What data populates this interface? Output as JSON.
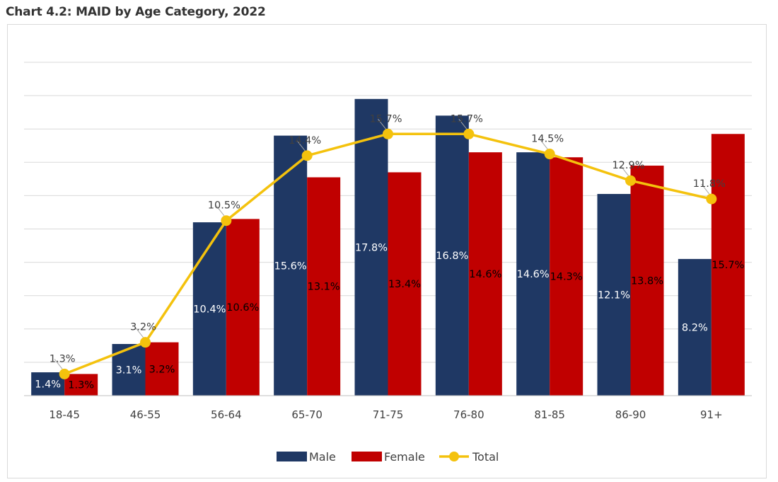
{
  "title": "Chart 4.2: MAID by Age Category, 2022",
  "chart_data": {
    "type": "bar",
    "categories": [
      "18-45",
      "46-55",
      "56-64",
      "65-70",
      "71-75",
      "76-80",
      "81-85",
      "86-90",
      "91+"
    ],
    "series": [
      {
        "name": "Male",
        "kind": "bar",
        "color": "#1f3864",
        "values": [
          1.4,
          3.1,
          10.4,
          15.6,
          17.8,
          16.8,
          14.6,
          12.1,
          8.2
        ],
        "labels": [
          "1.4%",
          "3.1%",
          "10.4%",
          "15.6%",
          "17.8%",
          "16.8%",
          "14.6%",
          "12.1%",
          "8.2%"
        ]
      },
      {
        "name": "Female",
        "kind": "bar",
        "color": "#c00000",
        "values": [
          1.3,
          3.2,
          10.6,
          13.1,
          13.4,
          14.6,
          14.3,
          13.8,
          15.7
        ],
        "labels": [
          "1.3%",
          "3.2%",
          "10.6%",
          "13.1%",
          "13.4%",
          "14.6%",
          "14.3%",
          "13.8%",
          "15.7%"
        ]
      },
      {
        "name": "Total",
        "kind": "line",
        "color": "#f4c20d",
        "values": [
          1.3,
          3.2,
          10.5,
          14.4,
          15.7,
          15.7,
          14.5,
          12.9,
          11.8
        ],
        "labels": [
          "1.3%",
          "3.2%",
          "10.5%",
          "14.4%",
          "15.7%",
          "15.7%",
          "14.5%",
          "12.9%",
          "11.8%"
        ]
      }
    ],
    "ylim": [
      0,
      20
    ],
    "grid": true,
    "legend_position": "bottom",
    "xlabel": "",
    "ylabel": ""
  }
}
